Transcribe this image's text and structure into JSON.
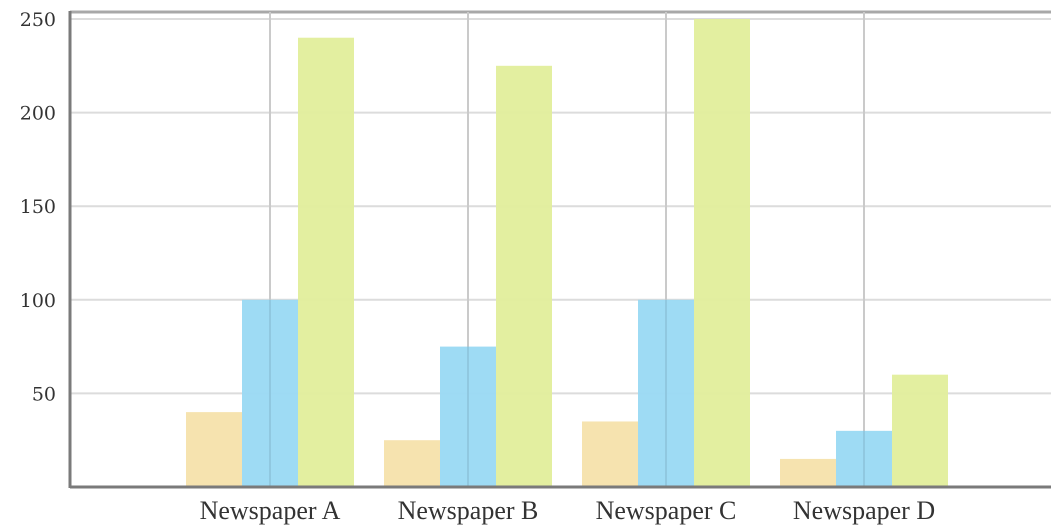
{
  "chart_data": {
    "type": "bar",
    "title": "",
    "xlabel": "",
    "ylabel": "",
    "categories": [
      "Newspaper A",
      "Newspaper B",
      "Newspaper C",
      "Newspaper D"
    ],
    "series": [
      {
        "values": [
          40,
          25,
          35,
          15
        ],
        "color": "#f5e2ab"
      },
      {
        "values": [
          100,
          75,
          100,
          30
        ],
        "color": "#99d9f3"
      },
      {
        "values": [
          240,
          225,
          250,
          60
        ],
        "color": "#e2ee9b"
      }
    ],
    "yticks": [
      50,
      100,
      150,
      200,
      250
    ],
    "ylim": [
      0,
      250
    ],
    "grid": true,
    "legend": "none"
  }
}
